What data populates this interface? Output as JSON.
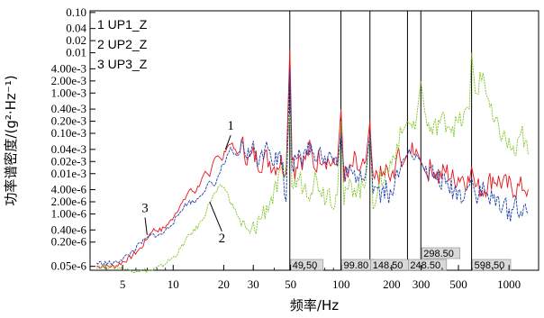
{
  "chart_data": {
    "type": "line",
    "xlabel": "频率/Hz",
    "ylabel": "功率谱密度/(g²·Hz⁻¹)",
    "xscale": "log",
    "yscale": "log",
    "xlim": [
      3.2,
      1500
    ],
    "ylim": [
      4e-08,
      0.11
    ],
    "xticks": [
      {
        "v": 5,
        "label": "5"
      },
      {
        "v": 10,
        "label": "10"
      },
      {
        "v": 20,
        "label": "20"
      },
      {
        "v": 30,
        "label": "30"
      },
      {
        "v": 50,
        "label": "50"
      },
      {
        "v": 100,
        "label": "100"
      },
      {
        "v": 200,
        "label": "200"
      },
      {
        "v": 300,
        "label": "300"
      },
      {
        "v": 500,
        "label": "500"
      },
      {
        "v": 1000,
        "label": "1000"
      }
    ],
    "yticks": [
      {
        "v": 0.1,
        "label": "0.10"
      },
      {
        "v": 0.04,
        "label": "0.04"
      },
      {
        "v": 0.02,
        "label": "0.02"
      },
      {
        "v": 0.01,
        "label": "0.01"
      },
      {
        "v": 0.004,
        "label": "4.00e-3"
      },
      {
        "v": 0.002,
        "label": "2.00e-3"
      },
      {
        "v": 0.001,
        "label": "1.00e-3"
      },
      {
        "v": 0.0004,
        "label": "0.40e-3"
      },
      {
        "v": 0.0002,
        "label": "0.20e-3"
      },
      {
        "v": 0.0001,
        "label": "0.10e-3"
      },
      {
        "v": 4e-05,
        "label": "0.04e-3"
      },
      {
        "v": 2e-05,
        "label": "0.02e-3"
      },
      {
        "v": 1e-05,
        "label": "0.01e-3"
      },
      {
        "v": 4e-06,
        "label": "4.00e-6"
      },
      {
        "v": 2e-06,
        "label": "2.00e-6"
      },
      {
        "v": 1e-06,
        "label": "1.00e-6"
      },
      {
        "v": 4e-07,
        "label": "0.40e-6"
      },
      {
        "v": 2e-07,
        "label": "0.20e-6"
      },
      {
        "v": 5e-08,
        "label": "0.05e-6"
      }
    ],
    "legend": {
      "placement": "top-left",
      "entries": [
        "1 UP1_Z",
        "2 UP2_Z",
        "3 UP3_Z"
      ]
    },
    "series": [
      {
        "name": "UP1_Z",
        "label": "1",
        "color": "#e8141c",
        "x": [
          3.5,
          4.5,
          5.5,
          6.5,
          7.5,
          8.5,
          9.5,
          10.5,
          11.5,
          12.5,
          13.5,
          14.5,
          15.5,
          16.5,
          17.5,
          18.5,
          19.5,
          20.5,
          22,
          24,
          26,
          28,
          30,
          33,
          36,
          40,
          44,
          47,
          49.5,
          51,
          53,
          56,
          60,
          65,
          70,
          75,
          80,
          85,
          90,
          95,
          99.8,
          104,
          110,
          120,
          130,
          140,
          148.5,
          155,
          165,
          175,
          185,
          200,
          215,
          230,
          248.5,
          260,
          280,
          298.5,
          320,
          350,
          380,
          420,
          470,
          520,
          580,
          598.5,
          630,
          700,
          800,
          900,
          1000,
          1100,
          1200,
          1300
        ],
        "y": [
          5e-08,
          5e-08,
          8e-08,
          1.5e-07,
          4e-07,
          4e-07,
          6e-07,
          1.2e-06,
          2e-06,
          4e-06,
          3.5e-06,
          6e-06,
          1e-05,
          8e-06,
          2.5e-05,
          3e-05,
          2e-05,
          4e-05,
          6e-05,
          3e-05,
          5e-05,
          2e-05,
          3e-05,
          1.8e-05,
          2.5e-05,
          1.5e-05,
          2e-05,
          1e-05,
          0.012,
          4e-05,
          1.2e-05,
          3e-05,
          2e-05,
          4e-05,
          1.5e-05,
          3e-05,
          2.5e-05,
          2e-05,
          1.5e-05,
          2e-05,
          0.0004,
          1e-05,
          8e-06,
          2e-05,
          1e-05,
          2e-05,
          0.0002,
          5e-06,
          1e-05,
          8e-06,
          1.2e-05,
          6e-06,
          3e-05,
          1.5e-05,
          3e-05,
          5e-05,
          4e-05,
          2e-05,
          1e-05,
          1.5e-05,
          8e-06,
          1.2e-05,
          7e-06,
          9e-06,
          6e-06,
          1.5e-05,
          5e-06,
          4e-06,
          8e-06,
          6e-06,
          5e-06,
          4e-06,
          5e-06,
          4e-06
        ]
      },
      {
        "name": "UP2_Z",
        "label": "2",
        "color": "#7cc420",
        "x": [
          3.5,
          4.5,
          5.5,
          6.5,
          7.5,
          8.5,
          9.5,
          10.5,
          11.5,
          12.5,
          13.5,
          14.5,
          15.5,
          16.5,
          17.5,
          18.5,
          19.5,
          20.5,
          22,
          24,
          26,
          28,
          30,
          33,
          36,
          40,
          44,
          47,
          49.5,
          51,
          53,
          56,
          60,
          65,
          70,
          75,
          80,
          85,
          90,
          95,
          99.8,
          104,
          110,
          120,
          130,
          140,
          148.5,
          155,
          165,
          175,
          185,
          200,
          215,
          230,
          248.5,
          260,
          280,
          298.5,
          320,
          350,
          380,
          420,
          470,
          520,
          580,
          598.5,
          630,
          700,
          800,
          900,
          1000,
          1100,
          1200,
          1300
        ],
        "y": [
          5e-08,
          5e-08,
          4e-08,
          4e-08,
          4e-08,
          5e-08,
          7e-08,
          1e-07,
          1.8e-07,
          3e-07,
          4e-07,
          6e-07,
          1e-06,
          2e-06,
          3e-06,
          4e-06,
          5e-06,
          4e-06,
          2e-06,
          1e-06,
          5e-07,
          3e-07,
          4e-07,
          8e-07,
          1.5e-06,
          3e-06,
          8e-06,
          1.5e-05,
          0.0003,
          5e-06,
          5e-06,
          8e-06,
          5e-06,
          4e-06,
          8e-06,
          5e-06,
          3e-06,
          4e-06,
          2e-06,
          3e-06,
          0.0002,
          2e-06,
          4e-06,
          5e-06,
          4e-06,
          6e-06,
          0.0001,
          2e-06,
          4e-06,
          8e-06,
          1e-05,
          2e-05,
          5e-05,
          0.0001,
          0.0002,
          0.00015,
          0.0002,
          0.002,
          0.0002,
          0.0001,
          0.0002,
          0.0002,
          0.00015,
          0.0002,
          0.0004,
          0.01,
          0.001,
          0.003,
          0.0002,
          0.0001,
          5e-05,
          3e-05,
          0.0001,
          3e-05
        ]
      },
      {
        "name": "UP3_Z",
        "label": "3",
        "color": "#1f3fa8",
        "x": [
          3.5,
          4.5,
          5.5,
          6.5,
          7.5,
          8.5,
          9.5,
          10.5,
          11.5,
          12.5,
          13.5,
          14.5,
          15.5,
          16.5,
          17.5,
          18.5,
          19.5,
          20.5,
          22,
          24,
          26,
          28,
          30,
          33,
          36,
          40,
          44,
          47,
          49.5,
          51,
          53,
          56,
          60,
          65,
          70,
          75,
          80,
          85,
          90,
          95,
          99.8,
          104,
          110,
          120,
          130,
          140,
          148.5,
          155,
          165,
          175,
          185,
          200,
          215,
          230,
          248.5,
          260,
          280,
          298.5,
          320,
          350,
          380,
          420,
          470,
          520,
          580,
          598.5,
          630,
          700,
          800,
          900,
          1000,
          1100,
          1200,
          1300
        ],
        "y": [
          6e-08,
          6e-08,
          1e-07,
          2e-07,
          3e-07,
          3e-07,
          5e-07,
          8e-07,
          1.5e-06,
          2e-06,
          2e-06,
          3e-06,
          4e-06,
          6e-06,
          5e-06,
          8e-06,
          1.5e-05,
          2e-05,
          4e-05,
          2.5e-05,
          5e-05,
          3e-05,
          4e-05,
          2e-05,
          8e-05,
          2e-05,
          3e-05,
          2e-06,
          0.004,
          1e-05,
          3e-05,
          5e-05,
          2e-05,
          5e-05,
          3e-05,
          5e-05,
          2e-05,
          3e-05,
          2e-05,
          1.5e-05,
          0.0001,
          1.2e-05,
          1e-05,
          8e-06,
          1.2e-05,
          1e-05,
          0.0001,
          4e-06,
          5e-06,
          3e-06,
          5e-06,
          2e-06,
          1e-05,
          2e-05,
          3e-05,
          5e-05,
          3e-05,
          2e-05,
          1e-05,
          1e-05,
          8e-06,
          5e-06,
          4e-06,
          3e-06,
          5e-06,
          8e-06,
          3e-06,
          4e-06,
          2e-06,
          2e-06,
          1e-06,
          2e-06,
          1e-06,
          1e-06
        ]
      }
    ],
    "peaks": [
      {
        "x": 49.5,
        "label": "49.50"
      },
      {
        "x": 99.8,
        "label": "99.80"
      },
      {
        "x": 148.5,
        "label": "148.50"
      },
      {
        "x": 248.5,
        "label": "248.50"
      },
      {
        "x": 298.5,
        "label": "298.50"
      },
      {
        "x": 598.5,
        "label": "598.50"
      }
    ],
    "annotations": [
      {
        "text": "1",
        "series": 0,
        "x": 20.5,
        "y": 4e-05,
        "tx": 22,
        "ty": 0.00011
      },
      {
        "text": "2",
        "series": 1,
        "x": 16.5,
        "y": 2e-06,
        "tx": 19.5,
        "ty": 3e-07
      },
      {
        "text": "3",
        "series": 2,
        "x": 7,
        "y": 3e-07,
        "tx": 6.8,
        "ty": 1e-06
      }
    ],
    "grid": false
  }
}
